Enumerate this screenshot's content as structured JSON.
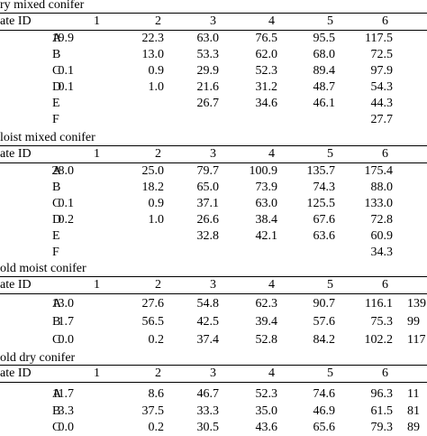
{
  "sections": [
    {
      "title": "ry mixed conifer",
      "header": [
        "ate ID",
        "1",
        "2",
        "3",
        "4",
        "5",
        "6"
      ],
      "rows": [
        {
          "id": "A",
          "v": [
            "19.9",
            "22.3",
            "63.0",
            "76.5",
            "95.5",
            "117.5",
            ""
          ]
        },
        {
          "id": "B",
          "v": [
            "",
            "13.0",
            "53.3",
            "62.0",
            "68.0",
            "72.5",
            ""
          ]
        },
        {
          "id": "C",
          "v": [
            "0.1",
            "0.9",
            "29.9",
            "52.3",
            "89.4",
            "97.9",
            ""
          ]
        },
        {
          "id": "D",
          "v": [
            "0.1",
            "1.0",
            "21.6",
            "31.2",
            "48.7",
            "54.3",
            ""
          ]
        },
        {
          "id": "E",
          "v": [
            "",
            "",
            "26.7",
            "34.6",
            "46.1",
            "44.3",
            ""
          ]
        },
        {
          "id": "F",
          "v": [
            "",
            "",
            "",
            "",
            "",
            "27.7",
            ""
          ]
        }
      ]
    },
    {
      "title": "loist mixed conifer",
      "header": [
        "ate ID",
        "1",
        "2",
        "3",
        "4",
        "5",
        "6"
      ],
      "rows": [
        {
          "id": "A",
          "v": [
            "28.0",
            "25.0",
            "79.7",
            "100.9",
            "135.7",
            "175.4",
            ""
          ]
        },
        {
          "id": "B",
          "v": [
            "",
            "18.2",
            "65.0",
            "73.9",
            "74.3",
            "88.0",
            ""
          ]
        },
        {
          "id": "C",
          "v": [
            "0.1",
            "0.9",
            "37.1",
            "63.0",
            "125.5",
            "133.0",
            ""
          ]
        },
        {
          "id": "D",
          "v": [
            "0.2",
            "1.0",
            "26.6",
            "38.4",
            "67.6",
            "72.8",
            ""
          ]
        },
        {
          "id": "E",
          "v": [
            "",
            "",
            "32.8",
            "42.1",
            "63.6",
            "60.9",
            ""
          ]
        },
        {
          "id": "F",
          "v": [
            "",
            "",
            "",
            "",
            "",
            "34.3",
            ""
          ]
        }
      ]
    },
    {
      "title": "old moist conifer",
      "header": [
        "ate ID",
        "1",
        "2",
        "3",
        "4",
        "5",
        "6"
      ],
      "rows": [
        {
          "id": "A",
          "v": [
            "13.0",
            "27.6",
            "54.8",
            "62.3",
            "90.7",
            "116.1",
            "139"
          ]
        },
        {
          "id": "B",
          "v": [
            "1.7",
            "56.5",
            "42.5",
            "39.4",
            "57.6",
            "75.3",
            "99"
          ]
        },
        {
          "id": "C",
          "v": [
            "0.0",
            "0.2",
            "37.4",
            "52.8",
            "84.2",
            "102.2",
            "117"
          ]
        }
      ]
    },
    {
      "title": "old dry conifer",
      "header": [
        "ate ID",
        "1",
        "2",
        "3",
        "4",
        "5",
        "6"
      ],
      "rows": [
        {
          "id": "A",
          "v": [
            "11.7",
            "8.6",
            "46.7",
            "52.3",
            "74.6",
            "96.3",
            "11"
          ]
        },
        {
          "id": "B",
          "v": [
            "3.3",
            "37.5",
            "33.3",
            "35.0",
            "46.9",
            "61.5",
            "81"
          ]
        },
        {
          "id": "C",
          "v": [
            "0.0",
            "0.2",
            "30.5",
            "43.6",
            "65.6",
            "79.3",
            "89"
          ]
        }
      ]
    }
  ]
}
